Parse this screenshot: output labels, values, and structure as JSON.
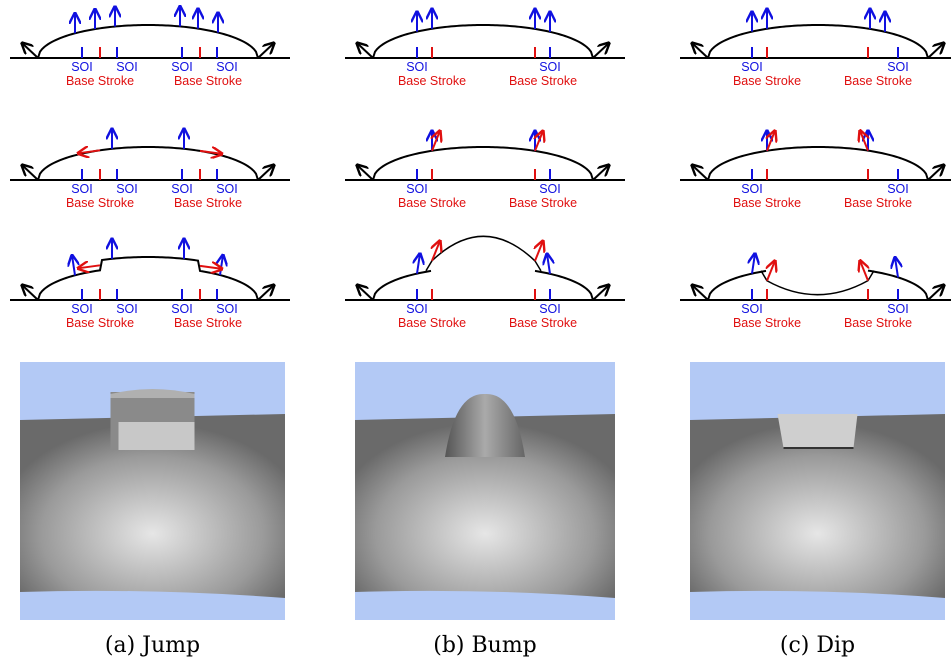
{
  "columns": [
    {
      "caption": "(a) Jump",
      "diagrams": [
        {
          "soi": [
            "SOI",
            "SOI",
            "SOI",
            "SOI"
          ],
          "base": [
            "Base Stroke",
            "Base Stroke"
          ]
        },
        {
          "soi": [
            "SOI",
            "SOI",
            "SOI",
            "SOI"
          ],
          "base": [
            "Base Stroke",
            "Base Stroke"
          ]
        },
        {
          "soi": [
            "SOI",
            "SOI",
            "SOI",
            "SOI"
          ],
          "base": [
            "Base Stroke",
            "Base Stroke"
          ]
        }
      ]
    },
    {
      "caption": "(b) Bump",
      "diagrams": [
        {
          "soi": [
            "SOI",
            "SOI"
          ],
          "base": [
            "Base Stroke",
            "Base Stroke"
          ]
        },
        {
          "soi": [
            "SOI",
            "SOI"
          ],
          "base": [
            "Base Stroke",
            "Base Stroke"
          ]
        },
        {
          "soi": [
            "SOI",
            "SOI"
          ],
          "base": [
            "Base Stroke",
            "Base Stroke"
          ]
        }
      ]
    },
    {
      "caption": "(c) Dip",
      "diagrams": [
        {
          "soi": [
            "SOI",
            "SOI"
          ],
          "base": [
            "Base Stroke",
            "Base Stroke"
          ]
        },
        {
          "soi": [
            "SOI",
            "SOI"
          ],
          "base": [
            "Base Stroke",
            "Base Stroke"
          ]
        },
        {
          "soi": [
            "SOI",
            "SOI"
          ],
          "base": [
            "Base Stroke",
            "Base Stroke"
          ]
        }
      ]
    }
  ]
}
